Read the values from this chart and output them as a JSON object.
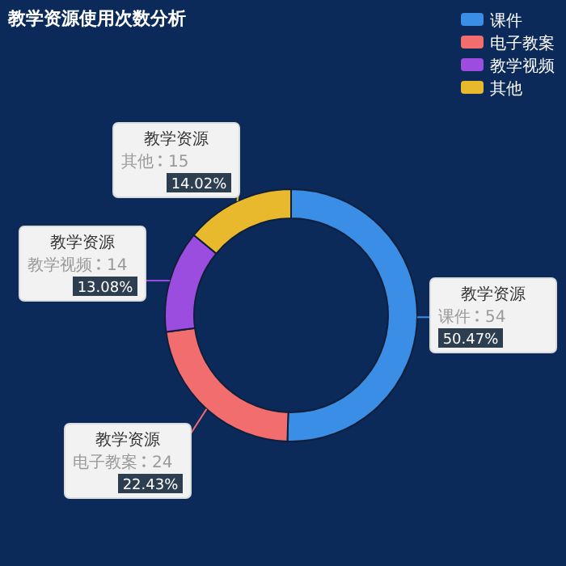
{
  "chart_data": {
    "type": "donut",
    "title": "教学资源使用次数分析",
    "categories": [
      "课件",
      "电子教案",
      "教学视频",
      "其他"
    ],
    "series": [
      {
        "name": "教学资源",
        "values": [
          54,
          24,
          14,
          15
        ],
        "colors": [
          "#3a8ee6",
          "#f26d6d",
          "#9b4de0",
          "#e8b92c"
        ]
      }
    ],
    "annotations": [
      "50.47%",
      "22.43%",
      "13.08%",
      "14.02%"
    ],
    "data_labels": true,
    "legend": "top right"
  }
}
